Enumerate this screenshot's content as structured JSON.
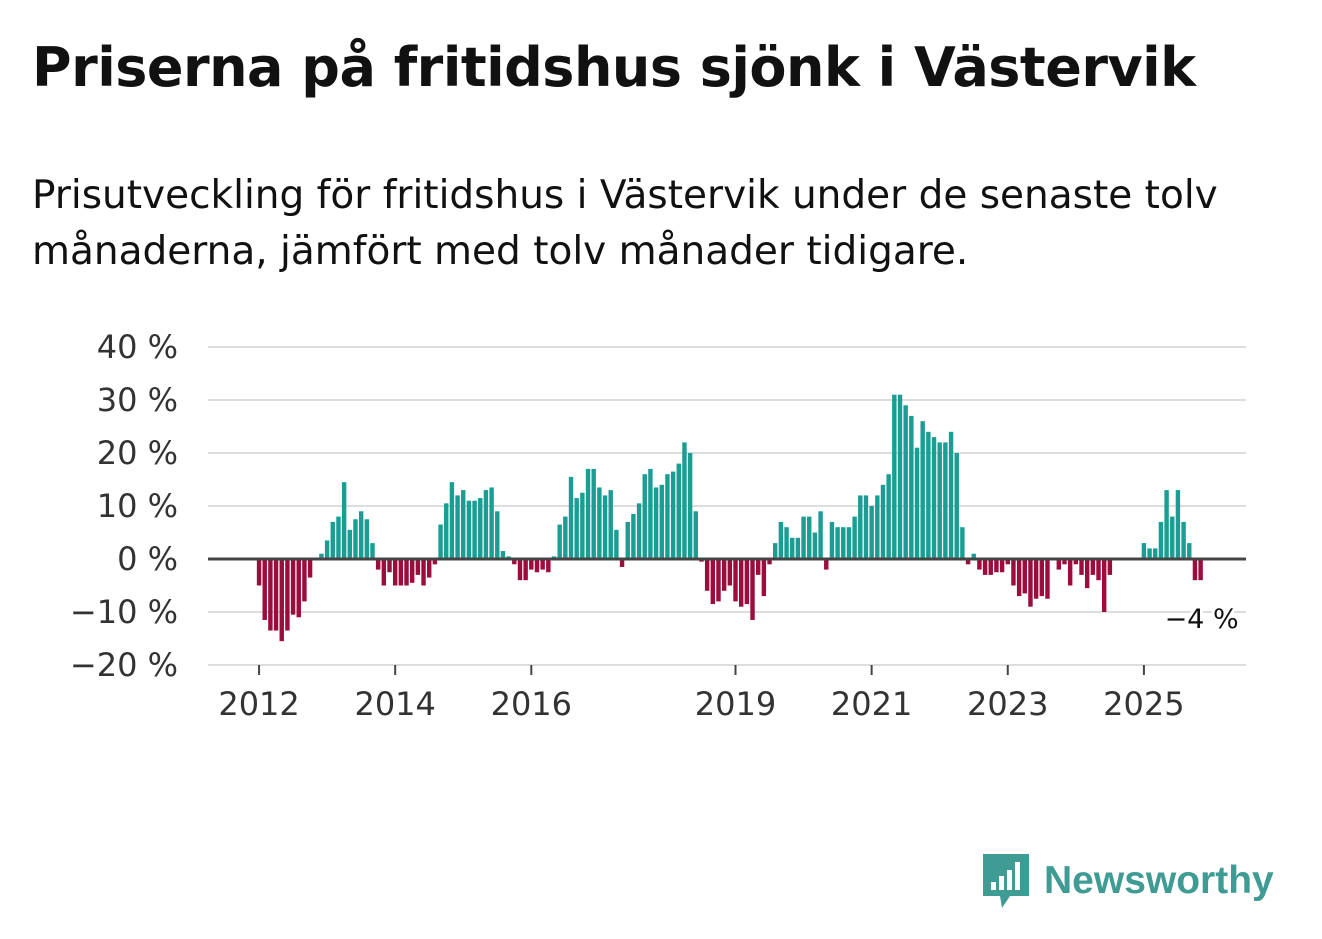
{
  "title": "Priserna på fritidshus sjönk i Västervik",
  "subtitle": "Prisutveckling för fritidshus i Västervik under de senaste tolv månaderna, jämfört med tolv månader tidigare.",
  "brand": {
    "name": "Newsworthy",
    "icon": "newsworthy-logo-icon",
    "color": "#3f9c94"
  },
  "colors": {
    "positive": "#1a9e94",
    "negative": "#9c0c3c",
    "baseline": "#444444",
    "grid": "#dddddd"
  },
  "chart_data": {
    "type": "bar",
    "title": "Priserna på fritidshus sjönk i Västervik",
    "xlabel": "",
    "ylabel": "",
    "ylim": [
      -20,
      40
    ],
    "y_ticks": [
      40,
      30,
      20,
      10,
      0,
      -10,
      -20
    ],
    "y_tick_labels": [
      "40 %",
      "30 %",
      "20 %",
      "10 %",
      "0 %",
      "−10 %",
      "−20 %"
    ],
    "x_range": [
      2011.25,
      2026.5
    ],
    "x_ticks": [
      2012,
      2014,
      2016,
      2019,
      2021,
      2023,
      2025
    ],
    "x_tick_labels": [
      "2012",
      "2014",
      "2016",
      "2019",
      "2021",
      "2023",
      "2025"
    ],
    "end_label": "−4 %",
    "series": [
      {
        "name": "Prisutveckling",
        "start_year": 2012,
        "monthly": true,
        "values": [
          -5,
          -11.5,
          -13.5,
          -13.5,
          -15.5,
          -13.5,
          -10.5,
          -11,
          -8,
          -3.5,
          0,
          1,
          3.5,
          7,
          8,
          14.5,
          5.5,
          7.5,
          9,
          7.5,
          3,
          -2,
          -5,
          -2.5,
          -5,
          -5,
          -5,
          -4.5,
          -3,
          -5,
          -3.5,
          -1,
          6.5,
          10.5,
          14.5,
          12,
          13,
          11,
          11,
          11.5,
          13,
          13.5,
          9,
          1.5,
          0.5,
          -1,
          -4,
          -4,
          -2,
          -2.5,
          -2,
          -2.5,
          0.5,
          6.5,
          8,
          15.5,
          11.5,
          12.5,
          17,
          17,
          13.5,
          12,
          13,
          5.5,
          -1.5,
          7,
          8.5,
          10.5,
          16,
          17,
          13.5,
          14,
          16,
          16.5,
          18,
          22,
          20,
          9,
          -0.5,
          -6,
          -8.5,
          -8,
          -6,
          -5,
          -8,
          -9,
          -8.5,
          -11.5,
          -3,
          -7,
          -1,
          3,
          7,
          6,
          4,
          4,
          8,
          8,
          5,
          9,
          -2,
          7,
          6,
          6,
          6,
          8,
          12,
          12,
          10,
          12,
          14,
          16,
          31,
          31,
          29,
          27,
          21,
          26,
          24,
          23,
          22,
          22,
          24,
          20,
          6,
          -1,
          1,
          -2,
          -3,
          -3,
          -2.5,
          -2.5,
          -1,
          -5,
          -7,
          -6.5,
          -9,
          -7.5,
          -7,
          -7.5,
          0,
          -2,
          -1,
          -5,
          -1,
          -3,
          -5.5,
          -3,
          -4,
          -10,
          -3,
          0,
          0,
          0,
          0,
          0,
          3,
          2,
          2,
          7,
          13,
          8,
          13,
          7,
          3,
          -4,
          -4
        ]
      }
    ]
  }
}
